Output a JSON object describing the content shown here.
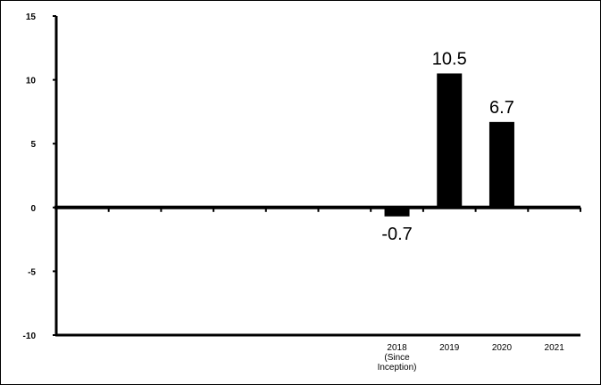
{
  "chart_data": {
    "type": "bar",
    "title": "",
    "xlabel": "",
    "ylabel": "",
    "ylim": [
      -10,
      15
    ],
    "yticks": [
      "15",
      "10",
      "5",
      "0",
      "-5",
      "-10"
    ],
    "categories": [
      "",
      "",
      "",
      "",
      "",
      "",
      "2018 (Since Inception)",
      "2019",
      "2020",
      "2021"
    ],
    "category_lines": [
      [],
      [],
      [],
      [],
      [],
      [],
      [
        "2018",
        "(Since",
        "Inception)"
      ],
      [
        "2019"
      ],
      [
        "2020"
      ],
      [
        "2021"
      ]
    ],
    "values": [
      null,
      null,
      null,
      null,
      null,
      null,
      -0.7,
      10.5,
      6.7,
      null
    ],
    "data_labels": [
      "",
      "",
      "",
      "",
      "",
      "",
      "-0.7",
      "10.5",
      "6.7",
      ""
    ],
    "bar_color": "#000000",
    "grid": false,
    "legend": "none"
  }
}
